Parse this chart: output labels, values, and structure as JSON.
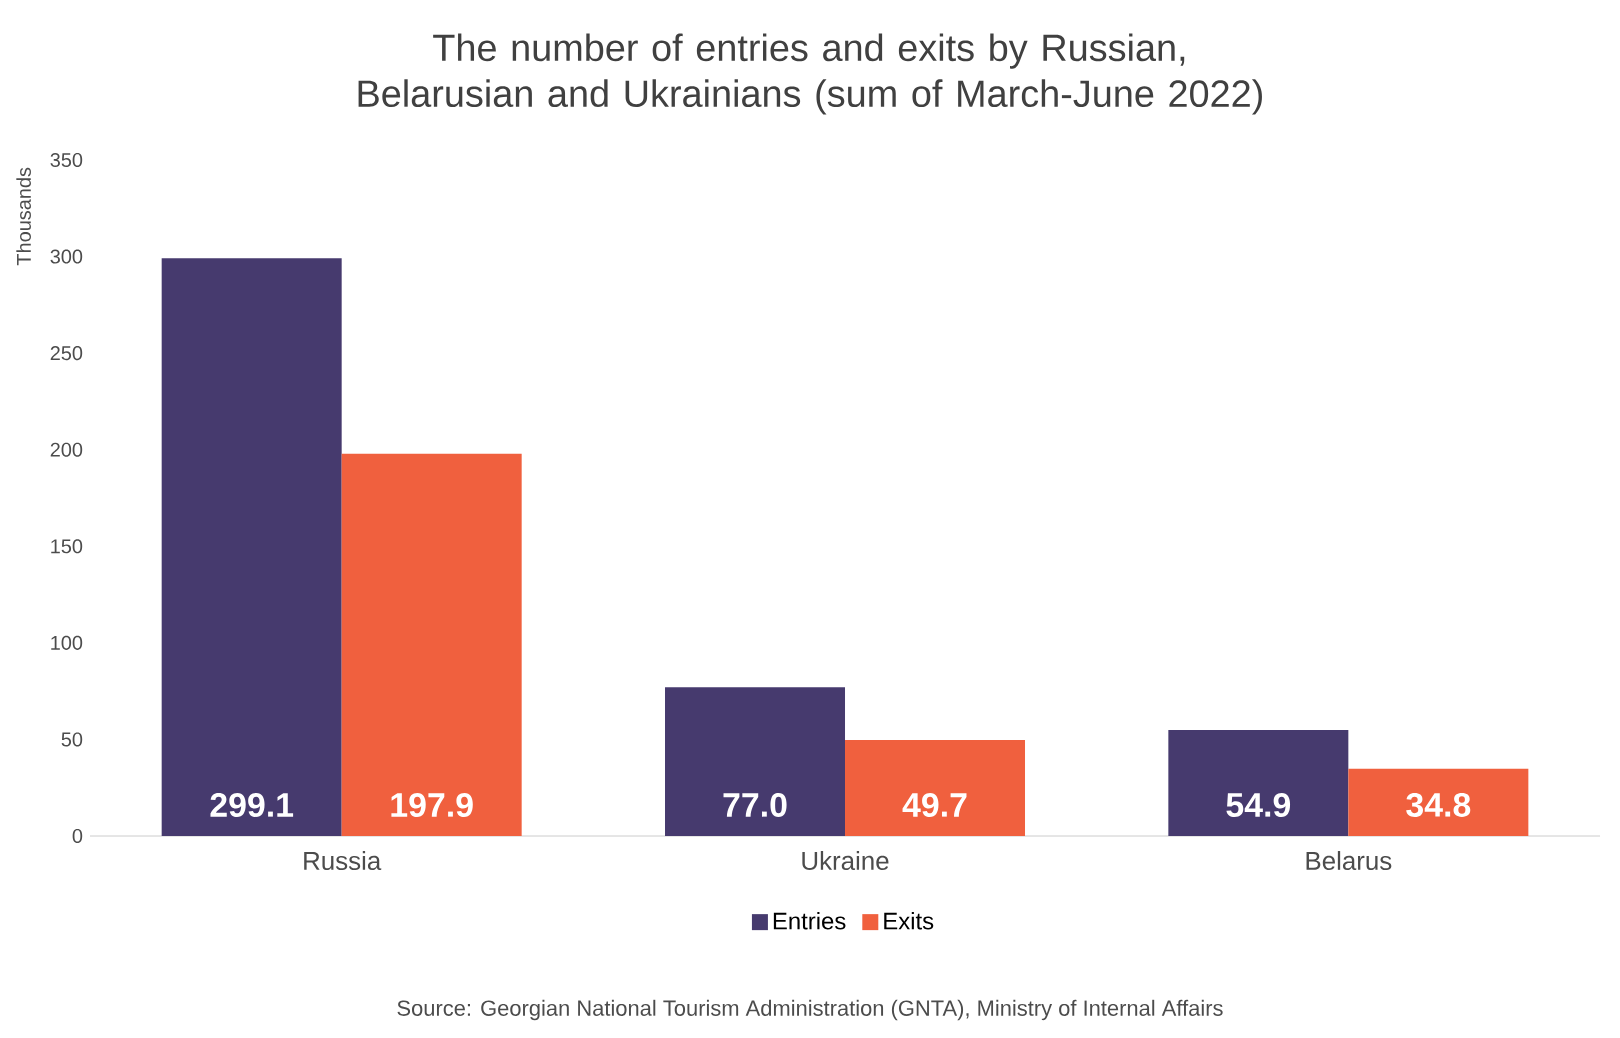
{
  "chart_data": {
    "type": "bar",
    "title": "The number of entries and exits by Russian, Belarusian and Ukrainians (sum of March-June 2022)",
    "ylabel": "Thousands",
    "categories": [
      "Russia",
      "Ukraine",
      "Belarus"
    ],
    "series": [
      {
        "name": "Entries",
        "color": "#463a6e",
        "values": [
          299.1,
          77.0,
          54.9
        ],
        "value_labels": [
          "299.1",
          "77.0",
          "54.9"
        ]
      },
      {
        "name": "Exits",
        "color": "#f0603e",
        "values": [
          197.9,
          49.7,
          34.8
        ],
        "value_labels": [
          "197.9",
          "49.7",
          "34.8"
        ]
      }
    ],
    "ylim": [
      0,
      350
    ],
    "yticks": [
      0,
      50,
      100,
      150,
      200,
      250,
      300,
      350
    ],
    "grid": false,
    "legend": "bottom",
    "annotations": [
      "Source: Georgian National Tourism Administration (GNTA), Ministry of Internal Affairs"
    ]
  }
}
